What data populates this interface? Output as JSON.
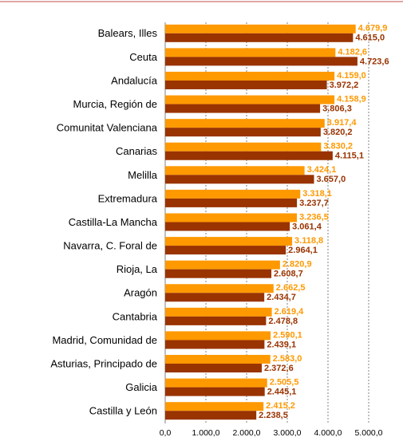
{
  "chart_data": {
    "type": "bar",
    "orientation": "horizontal",
    "categories": [
      "Balears, Illes",
      "Ceuta",
      "Andalucía",
      "Murcia, Región de",
      "Comunitat Valenciana",
      "Canarias",
      "Melilla",
      "Extremadura",
      "Castilla-La Mancha",
      "Navarra, C. Foral de",
      "Rioja, La",
      "Aragón",
      "Cantabria",
      "Madrid, Comunidad de",
      "Asturias, Principado de",
      "Galicia",
      "Castilla y León"
    ],
    "series": [
      {
        "color": "#ff9900",
        "label_color": "#ff9900",
        "values": [
          4679.9,
          4182.6,
          4159.0,
          4158.9,
          3917.4,
          3830.2,
          3424.1,
          3318.1,
          3236.5,
          3118.8,
          2820.9,
          2662.5,
          2619.4,
          2590.1,
          2583.0,
          2505.5,
          2415.2
        ],
        "value_labels": [
          "4.679,9",
          "4.182,6",
          "4.159,0",
          "4.158,9",
          "3.917,4",
          "3.830,2",
          "3.424,1",
          "3.318,1",
          "3.236,5",
          "3.118,8",
          "2.820,9",
          "2.662,5",
          "2.619,4",
          "2.590,1",
          "2.583,0",
          "2.505,5",
          "2.415,2"
        ]
      },
      {
        "color": "#993300",
        "label_color": "#993300",
        "values": [
          4615.0,
          4723.6,
          3972.2,
          3806.3,
          3820.2,
          4115.1,
          3657.0,
          3237.7,
          3061.4,
          2964.1,
          2608.7,
          2434.7,
          2478.8,
          2439.1,
          2372.6,
          2445.1,
          2238.5
        ],
        "value_labels": [
          "4.615,0",
          "4.723,6",
          "3.972,2",
          "3.806,3",
          "3.820,2",
          "4.115,1",
          "3.657,0",
          "3.237,7",
          "3.061,4",
          "2.964,1",
          "2.608,7",
          "2.434,7",
          "2.478,8",
          "2.439,1",
          "2.372,6",
          "2.445,1",
          "2.238,5"
        ]
      }
    ],
    "xlim": [
      0,
      5000
    ],
    "xticks": [
      {
        "value": 0,
        "label": "0,0"
      },
      {
        "value": 1000,
        "label": "1.000,0"
      },
      {
        "value": 2000,
        "label": "2.000,0"
      },
      {
        "value": 3000,
        "label": "3.000,0"
      },
      {
        "value": 4000,
        "label": "4.000,0"
      },
      {
        "value": 5000,
        "label": "5.000,0"
      }
    ],
    "grid": true
  }
}
